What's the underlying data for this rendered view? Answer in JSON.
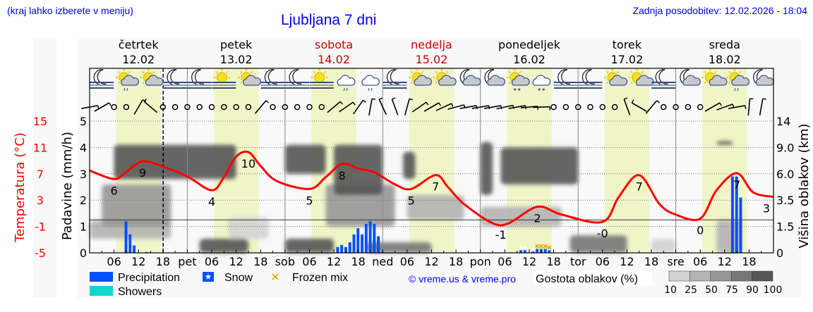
{
  "header": {
    "menu_hint": "(kraj lahko izberete v meniju)",
    "title": "Ljubljana 7 dni",
    "last_update": "Zadnja posodobitev: 12.02.2026 - 18:04"
  },
  "colors": {
    "temperature": "#ff0000",
    "precipitation": "#0050ff",
    "showers": "#10d8c8",
    "frozen_mix": "#f0a000",
    "daylight": "#f0f5c8",
    "weekend": "#cc0000",
    "text_blue": "#0000ff"
  },
  "days": [
    {
      "name": "četrtek",
      "date": "12.02",
      "abbr": "",
      "weekend": false
    },
    {
      "name": "petek",
      "date": "13.02",
      "abbr": "pet",
      "weekend": false
    },
    {
      "name": "sobota",
      "date": "14.02",
      "abbr": "sob",
      "weekend": true
    },
    {
      "name": "nedelja",
      "date": "15.02",
      "abbr": "ned",
      "weekend": true
    },
    {
      "name": "ponedeljek",
      "date": "16.02",
      "abbr": "pon",
      "weekend": false
    },
    {
      "name": "torek",
      "date": "17.02",
      "abbr": "tor",
      "weekend": false
    },
    {
      "name": "sreda",
      "date": "18.02",
      "abbr": "sre",
      "weekend": false
    }
  ],
  "weather_icons": [
    "moon-fog",
    "sun-cloud-rain",
    "sun-cloud",
    "moon-fog",
    "moon-fog",
    "sun-fog",
    "sun-cloud",
    "moon-fog",
    "moon-fog",
    "sun-fog",
    "cloud-rain",
    "cloud-rain",
    "moon-fog",
    "sun-cloud",
    "sun-cloud",
    "moon-cloud",
    "moon-cloud",
    "sun-cloud-snow",
    "cloud-snow",
    "moon-fog",
    "moon-fog",
    "sun-cloud",
    "sun-cloud-small",
    "moon-fog",
    "moon-cloud",
    "sun-cloud-small",
    "sun-cloud-rain",
    "moon-cloud"
  ],
  "wind_barbs": [
    80,
    60,
    null,
    null,
    30,
    -50,
    null,
    null,
    null,
    null,
    null,
    null,
    null,
    null,
    40,
    null,
    null,
    null,
    null,
    null,
    50,
    55,
    35,
    10,
    -25,
    -20,
    15,
    55,
    60,
    65,
    75,
    80,
    80,
    80,
    78,
    80,
    85,
    88,
    null,
    null,
    null,
    null,
    null,
    null,
    -20,
    -60,
    40,
    null,
    null,
    null,
    null,
    60,
    70,
    80,
    5,
    10
  ],
  "chart_data": {
    "type": "line",
    "title": "Ljubljana 7 dni",
    "x_ticks": [
      "06",
      "12",
      "18"
    ],
    "axes": {
      "precipitation": {
        "label": "Padavine (mm/h)",
        "range": [
          0,
          5
        ],
        "ticks": [
          "0",
          "1",
          "2",
          "3",
          "4",
          "5"
        ]
      },
      "temperature": {
        "label": "Temperatura (°C)",
        "range": [
          -5,
          15
        ],
        "ticks": [
          "15",
          "11",
          "7",
          "3",
          "-1",
          "-5"
        ]
      },
      "cloud_height": {
        "label": "Višina oblakov (km)",
        "ticks": [
          "14",
          "9.0",
          "6.0",
          "3.5",
          "1.5",
          "0"
        ],
        "tick_values": [
          14,
          9,
          6,
          3.5,
          1.5,
          0
        ]
      }
    },
    "grid": true,
    "current_time": "12.02 18:04",
    "temperature": [
      {
        "t": "12.02 00:00",
        "v": 7.5
      },
      {
        "t": "12.02 06:00",
        "v": 6.2
      },
      {
        "t": "12.02 09:00",
        "v": 7.3
      },
      {
        "t": "12.02 13:00",
        "v": 8.9
      },
      {
        "t": "12.02 18:00",
        "v": 8.1
      },
      {
        "t": "13.02 00:00",
        "v": 6.6
      },
      {
        "t": "13.02 06:00",
        "v": 4.5
      },
      {
        "t": "13.02 09:00",
        "v": 6.5
      },
      {
        "t": "13.02 12:00",
        "v": 9.6
      },
      {
        "t": "13.02 15:00",
        "v": 10.3
      },
      {
        "t": "13.02 18:00",
        "v": 8.2
      },
      {
        "t": "13.02 22:00",
        "v": 5.9
      },
      {
        "t": "14.02 06:00",
        "v": 4.7
      },
      {
        "t": "14.02 10:00",
        "v": 6.5
      },
      {
        "t": "14.02 14:00",
        "v": 8.5
      },
      {
        "t": "14.02 18:00",
        "v": 7.8
      },
      {
        "t": "14.02 22:00",
        "v": 7.2
      },
      {
        "t": "15.02 03:00",
        "v": 5.4
      },
      {
        "t": "15.02 07:00",
        "v": 4.7
      },
      {
        "t": "15.02 13:00",
        "v": 6.8
      },
      {
        "t": "15.02 16:00",
        "v": 5.0
      },
      {
        "t": "15.02 20:00",
        "v": 2.4
      },
      {
        "t": "16.02 03:00",
        "v": -0.5
      },
      {
        "t": "16.02 07:00",
        "v": -0.5
      },
      {
        "t": "16.02 14:00",
        "v": 2.0
      },
      {
        "t": "16.02 20:00",
        "v": 0.8
      },
      {
        "t": "17.02 06:00",
        "v": -0.3
      },
      {
        "t": "17.02 10:00",
        "v": 3.5
      },
      {
        "t": "17.02 15:00",
        "v": 6.8
      },
      {
        "t": "17.02 20:00",
        "v": 2.4
      },
      {
        "t": "18.02 00:00",
        "v": 0.8
      },
      {
        "t": "18.02 06:00",
        "v": 0.2
      },
      {
        "t": "18.02 10:00",
        "v": 4.5
      },
      {
        "t": "18.02 15:00",
        "v": 7.1
      },
      {
        "t": "18.02 19:00",
        "v": 4.2
      },
      {
        "t": "18.02 24:00",
        "v": 3.5
      }
    ],
    "temperature_labels": [
      {
        "t": "12.02 06:00",
        "label": "6"
      },
      {
        "t": "12.02 13:00",
        "label": "9"
      },
      {
        "t": "13.02 06:00",
        "label": "4"
      },
      {
        "t": "13.02 15:00",
        "label": "10"
      },
      {
        "t": "14.02 06:00",
        "label": "5"
      },
      {
        "t": "14.02 14:00",
        "label": "8"
      },
      {
        "t": "15.02 07:00",
        "label": "5"
      },
      {
        "t": "15.02 13:00",
        "label": "7"
      },
      {
        "t": "16.02 05:00",
        "label": "-1"
      },
      {
        "t": "16.02 14:00",
        "label": "2"
      },
      {
        "t": "17.02 06:00",
        "label": "-0"
      },
      {
        "t": "17.02 15:00",
        "label": "7"
      },
      {
        "t": "18.02 06:00",
        "label": "0"
      },
      {
        "t": "18.02 15:00",
        "label": "7"
      },
      {
        "t": "18.02 24:00",
        "label": "3"
      }
    ],
    "precipitation": [
      {
        "t": "12.02 09:00",
        "v": 1.2,
        "kind": "rain"
      },
      {
        "t": "12.02 10:00",
        "v": 0.7,
        "kind": "rain"
      },
      {
        "t": "12.02 11:00",
        "v": 0.28,
        "kind": "rain"
      },
      {
        "t": "12.02 14:00",
        "v": 0.03,
        "kind": "rain"
      },
      {
        "t": "14.02 13:00",
        "v": 0.22,
        "kind": "rain"
      },
      {
        "t": "14.02 14:00",
        "v": 0.3,
        "kind": "rain"
      },
      {
        "t": "14.02 15:00",
        "v": 0.22,
        "kind": "rain"
      },
      {
        "t": "14.02 16:00",
        "v": 0.4,
        "kind": "rain"
      },
      {
        "t": "14.02 17:00",
        "v": 0.7,
        "kind": "rain"
      },
      {
        "t": "14.02 18:00",
        "v": 0.93,
        "kind": "rain"
      },
      {
        "t": "14.02 19:00",
        "v": 0.7,
        "kind": "rain"
      },
      {
        "t": "14.02 20:00",
        "v": 1.1,
        "kind": "rain"
      },
      {
        "t": "14.02 21:00",
        "v": 1.2,
        "kind": "rain"
      },
      {
        "t": "14.02 22:00",
        "v": 1.1,
        "kind": "rain"
      },
      {
        "t": "14.02 23:00",
        "v": 0.63,
        "kind": "rain"
      },
      {
        "t": "15.02 00:00",
        "v": 0.03,
        "kind": "rain"
      },
      {
        "t": "16.02 10:00",
        "v": 0.1,
        "kind": "snow"
      },
      {
        "t": "16.02 11:00",
        "v": 0.1,
        "kind": "snow"
      },
      {
        "t": "16.02 13:00",
        "v": 0.05,
        "kind": "snow"
      },
      {
        "t": "16.02 14:00",
        "v": 0.15,
        "kind": "frozen"
      },
      {
        "t": "16.02 15:00",
        "v": 0.15,
        "kind": "frozen"
      },
      {
        "t": "16.02 16:00",
        "v": 0.15,
        "kind": "frozen"
      },
      {
        "t": "16.02 17:00",
        "v": 0.1,
        "kind": "frozen"
      },
      {
        "t": "18.02 14:00",
        "v": 2.9,
        "kind": "rain"
      },
      {
        "t": "18.02 15:00",
        "v": 2.9,
        "kind": "rain"
      },
      {
        "t": "18.02 16:00",
        "v": 2.1,
        "kind": "rain"
      }
    ],
    "cloud_density": [
      {
        "from": "12.02 00:00",
        "to": "12.02 20:00",
        "km": [
          0.8,
          2.0
        ],
        "pct": 25
      },
      {
        "from": "12.02 03:00",
        "to": "12.02 20:00",
        "km": [
          1.5,
          5.0
        ],
        "pct": 50
      },
      {
        "from": "12.02 06:00",
        "to": "13.02 12:00",
        "km": [
          5.5,
          9.5
        ],
        "pct": 90
      },
      {
        "from": "13.02 03:00",
        "to": "13.02 15:00",
        "km": [
          0,
          0.8
        ],
        "pct": 90
      },
      {
        "from": "13.02 10:00",
        "to": "13.02 20:00",
        "km": [
          0.8,
          2.2
        ],
        "pct": 10
      },
      {
        "from": "14.02 00:00",
        "to": "14.02 12:00",
        "km": [
          0,
          0.8
        ],
        "pct": 90
      },
      {
        "from": "14.02 00:00",
        "to": "14.02 10:00",
        "km": [
          6.0,
          9.5
        ],
        "pct": 90
      },
      {
        "from": "14.02 10:00",
        "to": "15.02 03:00",
        "km": [
          1.5,
          5.0
        ],
        "pct": 50
      },
      {
        "from": "14.02 12:00",
        "to": "15.02 00:00",
        "km": [
          4.0,
          9.5
        ],
        "pct": 90
      },
      {
        "from": "14.02 20:00",
        "to": "15.02 12:00",
        "km": [
          0,
          0.6
        ],
        "pct": 75
      },
      {
        "from": "15.02 05:00",
        "to": "15.02 08:00",
        "km": [
          5.5,
          8.5
        ],
        "pct": 90
      },
      {
        "from": "15.02 06:00",
        "to": "15.02 20:00",
        "km": [
          2.0,
          4.0
        ],
        "pct": 25
      },
      {
        "from": "16.02 00:00",
        "to": "16.02 03:00",
        "km": [
          4.0,
          10.0
        ],
        "pct": 90
      },
      {
        "from": "16.02 00:00",
        "to": "16.02 20:00",
        "km": [
          1.5,
          3.0
        ],
        "pct": 25
      },
      {
        "from": "16.02 05:00",
        "to": "17.02 00:00",
        "km": [
          5.0,
          9.0
        ],
        "pct": 90
      },
      {
        "from": "16.02 22:00",
        "to": "17.02 12:00",
        "km": [
          0,
          1.0
        ],
        "pct": 75
      },
      {
        "from": "17.02 18:00",
        "to": "18.02 00:00",
        "km": [
          0,
          0.8
        ],
        "pct": 10
      },
      {
        "from": "18.02 10:00",
        "to": "18.02 14:00",
        "km": [
          9.5,
          10.2
        ],
        "pct": 90
      },
      {
        "from": "18.02 10:00",
        "to": "18.02 16:00",
        "km": [
          0,
          2.0
        ],
        "pct": 25
      }
    ],
    "legend": {
      "precipitation": "Precipitation",
      "snow": "Snow",
      "frozen_mix": "Frozen mix",
      "showers": "Showers",
      "copyright": "© vreme.us & vreme.pro",
      "cloud_density": "Gostota oblakov (%)",
      "density_levels": [
        "10",
        "25",
        "50",
        "75",
        "90",
        "100"
      ],
      "density_colors": [
        "#d3d3d3",
        "#b4b4b4",
        "#979797",
        "#777777",
        "#555555"
      ]
    }
  }
}
